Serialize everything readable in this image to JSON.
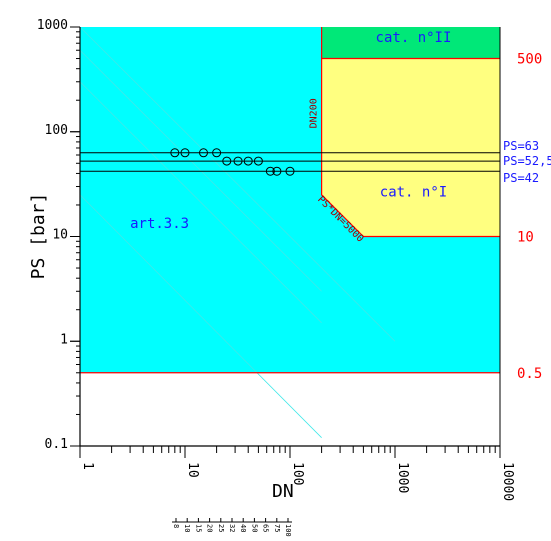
{
  "chart_data": {
    "type": "scatter",
    "xlabel": "DN",
    "ylabel": "PS [bar]",
    "x_scale": "log",
    "y_scale": "log",
    "xlim": [
      1,
      10000
    ],
    "ylim": [
      0.1,
      1000
    ],
    "x_ticks": [
      "1",
      "10",
      "100",
      "1000",
      "10000"
    ],
    "y_ticks": [
      "1000",
      "100",
      "10",
      "1",
      "0.1"
    ],
    "right_labels": [
      "500",
      "10",
      "0.5"
    ],
    "regions": [
      {
        "name": "art.3.3",
        "color": "#00ffff"
      },
      {
        "name": "cat. n°I",
        "color": "#ffff80"
      },
      {
        "name": "cat. n°II",
        "color": "#00e878"
      }
    ],
    "annotations": {
      "dn_limit": "DN200",
      "ps_dn_limit": "PS*DN=5000"
    },
    "pressure_lines": [
      {
        "label": "PS=63",
        "value": 63
      },
      {
        "label": "PS=52,5",
        "value": 52.5
      },
      {
        "label": "PS=42",
        "value": 42
      }
    ],
    "series": [
      {
        "ps": 63,
        "dn": [
          8,
          10,
          15,
          20
        ]
      },
      {
        "ps": 52.5,
        "dn": [
          25,
          32,
          40,
          50
        ]
      },
      {
        "ps": 42,
        "dn": [
          65,
          75,
          100
        ]
      }
    ],
    "dn_scale_labels": [
      "8",
      "10",
      "15",
      "20",
      "25",
      "32",
      "40",
      "50",
      "65",
      "75",
      "100"
    ],
    "colors": {
      "art33": "#00ffff",
      "cat1": "#ffff80",
      "cat2": "#00e878",
      "boundary": "#ff0000",
      "label_blue": "#1a1aff"
    }
  }
}
